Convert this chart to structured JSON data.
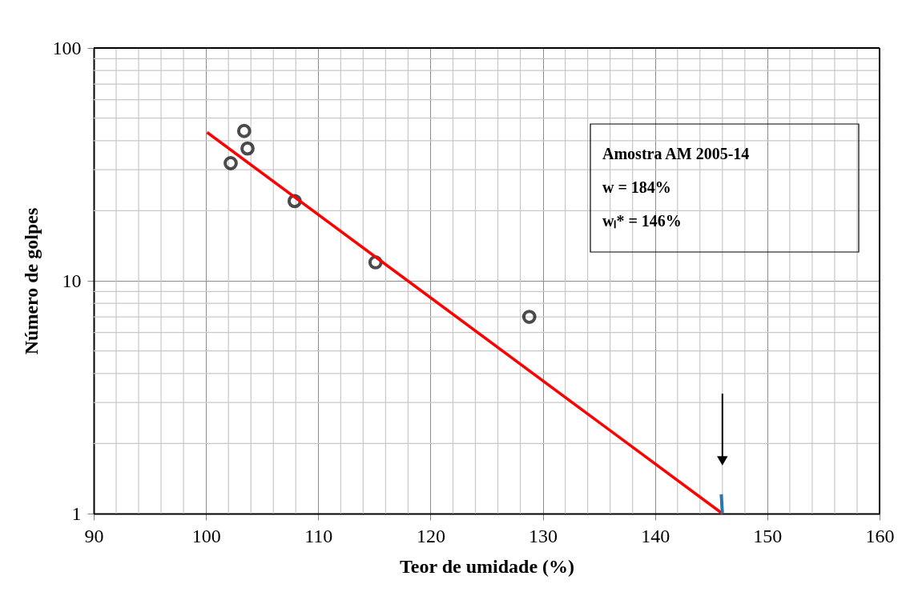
{
  "chart_data": {
    "type": "scatter",
    "xlabel": "Teor de umidade (%)",
    "ylabel": "Número de golpes",
    "series": [
      {
        "color": "#000000",
        "marker": "circle",
        "x": [
          102.2,
          103.4,
          103.7,
          107.9,
          115.1,
          128.8
        ],
        "values": [
          32,
          44,
          37,
          22,
          12,
          7
        ]
      },
      {
        "type": "line",
        "color": "#ff0000",
        "x": [
          100.1,
          146
        ],
        "values": [
          43.4,
          1
        ]
      },
      {
        "type": "line",
        "color": "#2e75b6",
        "x": [
          145.9,
          146.0
        ],
        "values": [
          1.21,
          1.0
        ]
      }
    ],
    "xlim": [
      90,
      160
    ],
    "xticks": [
      90,
      100,
      110,
      120,
      130,
      140,
      150,
      160
    ],
    "ylim": [
      1,
      100
    ],
    "yticks": [
      1,
      10,
      100
    ],
    "log": "y",
    "grid": true,
    "annotations": [
      "Amostra AM 2005-14",
      "w = 184%",
      "wₗ* = 146%"
    ]
  }
}
